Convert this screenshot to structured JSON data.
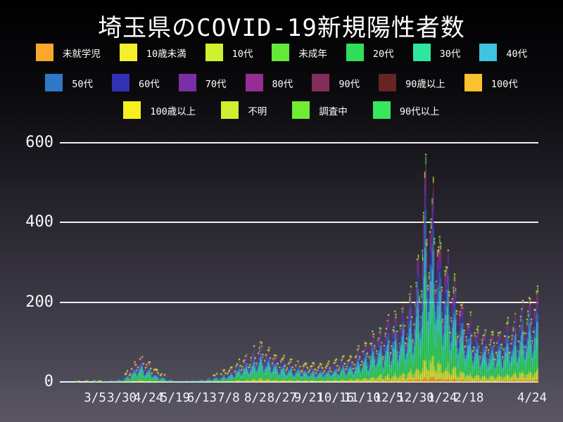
{
  "title": "埼玉県のCOVID-19新規陽性者数",
  "legend": {
    "rows": [
      [
        {
          "label": "未就学児",
          "color": "#F9A82C"
        },
        {
          "label": "10歳未満",
          "color": "#F4EF2D"
        },
        {
          "label": "10代",
          "color": "#CEF32E"
        },
        {
          "label": "未成年",
          "color": "#64E93B"
        },
        {
          "label": "20代",
          "color": "#2FDF5B"
        },
        {
          "label": "30代",
          "color": "#2FE6A1"
        },
        {
          "label": "40代",
          "color": "#3FC3E0"
        }
      ],
      [
        {
          "label": "50代",
          "color": "#2F78C7"
        },
        {
          "label": "60代",
          "color": "#3331B5"
        },
        {
          "label": "70代",
          "color": "#7A2FA7"
        },
        {
          "label": "80代",
          "color": "#952D92"
        },
        {
          "label": "90代",
          "color": "#832E5A"
        },
        {
          "label": "90歳以上",
          "color": "#662424"
        },
        {
          "label": "100代",
          "color": "#FBC12E"
        }
      ],
      [
        {
          "label": "100歳以上",
          "color": "#F6F01F"
        },
        {
          "label": "不明",
          "color": "#CFF02F"
        },
        {
          "label": "調査中",
          "color": "#70EC33"
        },
        {
          "label": "90代以上",
          "color": "#36E85C"
        }
      ]
    ]
  },
  "chart_data": {
    "type": "bar",
    "subtype": "stacked-daily-bars",
    "title": "埼玉県のCOVID-19新規陽性者数",
    "xlabel": "",
    "ylabel": "",
    "x_start_date": "2020-02-01",
    "x_end_date": "2021-04-24",
    "days": 449,
    "ylim": [
      0,
      620
    ],
    "y_ticks": [
      0,
      200,
      400,
      600
    ],
    "grid": true,
    "legend_position": "top",
    "x_ticks": [
      {
        "label": "3/5",
        "day": 33
      },
      {
        "label": "3/30",
        "day": 58
      },
      {
        "label": "4/24",
        "day": 83
      },
      {
        "label": "5/19",
        "day": 108
      },
      {
        "label": "6/13",
        "day": 133
      },
      {
        "label": "7/8",
        "day": 158
      },
      {
        "label": "8/2",
        "day": 183
      },
      {
        "label": "8/27",
        "day": 208
      },
      {
        "label": "9/21",
        "day": 233
      },
      {
        "label": "10/16",
        "day": 258
      },
      {
        "label": "11/10",
        "day": 283
      },
      {
        "label": "12/5",
        "day": 308
      },
      {
        "label": "12/30",
        "day": 333
      },
      {
        "label": "1/24",
        "day": 358
      },
      {
        "label": "2/18",
        "day": 383
      },
      {
        "label": "4/24",
        "day": 448
      }
    ],
    "totals_anchors": [
      [
        0,
        0.3
      ],
      [
        20,
        0.4
      ],
      [
        29,
        0.8
      ],
      [
        40,
        2
      ],
      [
        50,
        4
      ],
      [
        59,
        8
      ],
      [
        66,
        25
      ],
      [
        72,
        45
      ],
      [
        75,
        50
      ],
      [
        80,
        42
      ],
      [
        89,
        25
      ],
      [
        100,
        8
      ],
      [
        110,
        3
      ],
      [
        125,
        4
      ],
      [
        140,
        9
      ],
      [
        151,
        16
      ],
      [
        160,
        26
      ],
      [
        170,
        45
      ],
      [
        180,
        60
      ],
      [
        188,
        80
      ],
      [
        196,
        65
      ],
      [
        205,
        50
      ],
      [
        216,
        42
      ],
      [
        230,
        34
      ],
      [
        245,
        33
      ],
      [
        260,
        42
      ],
      [
        274,
        50
      ],
      [
        285,
        75
      ],
      [
        295,
        100
      ],
      [
        304,
        115
      ],
      [
        315,
        135
      ],
      [
        325,
        160
      ],
      [
        330,
        185
      ],
      [
        335,
        240
      ],
      [
        340,
        330
      ],
      [
        343,
        480
      ],
      [
        345,
        400
      ],
      [
        347,
        420
      ],
      [
        351,
        400
      ],
      [
        356,
        300
      ],
      [
        365,
        240
      ],
      [
        375,
        170
      ],
      [
        385,
        130
      ],
      [
        395,
        100
      ],
      [
        405,
        100
      ],
      [
        415,
        110
      ],
      [
        425,
        125
      ],
      [
        435,
        150
      ],
      [
        448,
        185
      ]
    ],
    "peak_value": 605,
    "weekday_factors": [
      0.85,
      0.55,
      0.7,
      0.95,
      1.05,
      1.2,
      1.25
    ],
    "child_share_growth": [
      0.4,
      1.1
    ],
    "series": [
      {
        "name": "未就学児",
        "color": "#F9A82C",
        "share": 0.018,
        "presence": 1
      },
      {
        "name": "10歳未満",
        "color": "#F4EF2D",
        "share": 0.028,
        "presence": 1
      },
      {
        "name": "10代",
        "color": "#CEF32E",
        "share": 0.055,
        "presence": 1
      },
      {
        "name": "未成年",
        "color": "#64E93B",
        "share": 0.003,
        "presence": 0.25
      },
      {
        "name": "20代",
        "color": "#2FDF5B",
        "share": 0.22,
        "presence": 1
      },
      {
        "name": "30代",
        "color": "#2FE6A1",
        "share": 0.155,
        "presence": 1
      },
      {
        "name": "40代",
        "color": "#3FC3E0",
        "share": 0.15,
        "presence": 1
      },
      {
        "name": "50代",
        "color": "#2F78C7",
        "share": 0.125,
        "presence": 1
      },
      {
        "name": "60代",
        "color": "#3331B5",
        "share": 0.08,
        "presence": 1
      },
      {
        "name": "70代",
        "color": "#7A2FA7",
        "share": 0.065,
        "presence": 1
      },
      {
        "name": "80代",
        "color": "#952D92",
        "share": 0.048,
        "presence": 1
      },
      {
        "name": "90代",
        "color": "#832E5A",
        "share": 0.022,
        "presence": 1
      },
      {
        "name": "90歳以上",
        "color": "#662424",
        "share": 0.004,
        "presence": 0.15
      },
      {
        "name": "100代",
        "color": "#FBC12E",
        "share": 0.001,
        "presence": 0.06
      },
      {
        "name": "100歳以上",
        "color": "#F6F01F",
        "share": 0.002,
        "presence": 0.1
      },
      {
        "name": "不明",
        "color": "#CFF02F",
        "share": 0.015,
        "presence": 0.5
      },
      {
        "name": "調査中",
        "color": "#70EC33",
        "share": 0.004,
        "presence": 0.12
      },
      {
        "name": "90代以上",
        "color": "#36E85C",
        "share": 0.005,
        "presence": 0.15
      }
    ],
    "top_marker": {
      "color": "#ECF23A",
      "min_value": 12
    }
  }
}
